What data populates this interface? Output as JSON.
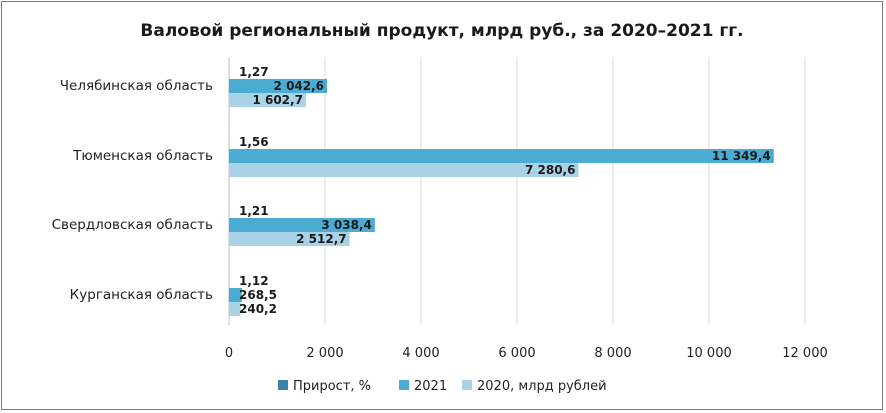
{
  "chart_data": {
    "type": "bar",
    "orientation": "horizontal",
    "title": "Валовой региональный продукт, млрд руб., за 2020–2021 гг.",
    "categories": [
      "Челябинская область",
      "Тюменская область",
      "Свердловская область",
      "Курганская  область"
    ],
    "series": [
      {
        "name": "Прирост, %",
        "values": [
          1.27,
          1.56,
          1.21,
          1.12
        ],
        "labels": [
          "1,27",
          "1,56",
          "1,21",
          "1,12"
        ],
        "color": "#3a82a8"
      },
      {
        "name": "2021",
        "values": [
          2042.6,
          11349.4,
          3038.4,
          268.5
        ],
        "labels": [
          "2 042,6",
          "11 349,4",
          "3 038,4",
          "268,5"
        ],
        "color": "#4bacd3"
      },
      {
        "name": "2020, млрд рублей",
        "values": [
          1602.7,
          7280.6,
          2512.7,
          240.2
        ],
        "labels": [
          "1 602,7",
          "7 280,6",
          "2 512,7",
          "240,2"
        ],
        "color": "#a9d2e6"
      }
    ],
    "xlim": [
      0,
      12000
    ],
    "xticks": [
      0,
      2000,
      4000,
      6000,
      8000,
      10000,
      12000
    ],
    "xtick_labels": [
      "0",
      "2 000",
      "4 000",
      "6 000",
      "8 000",
      "10 000",
      "12 000"
    ],
    "grid": "vertical",
    "legend": "bottom-center"
  }
}
